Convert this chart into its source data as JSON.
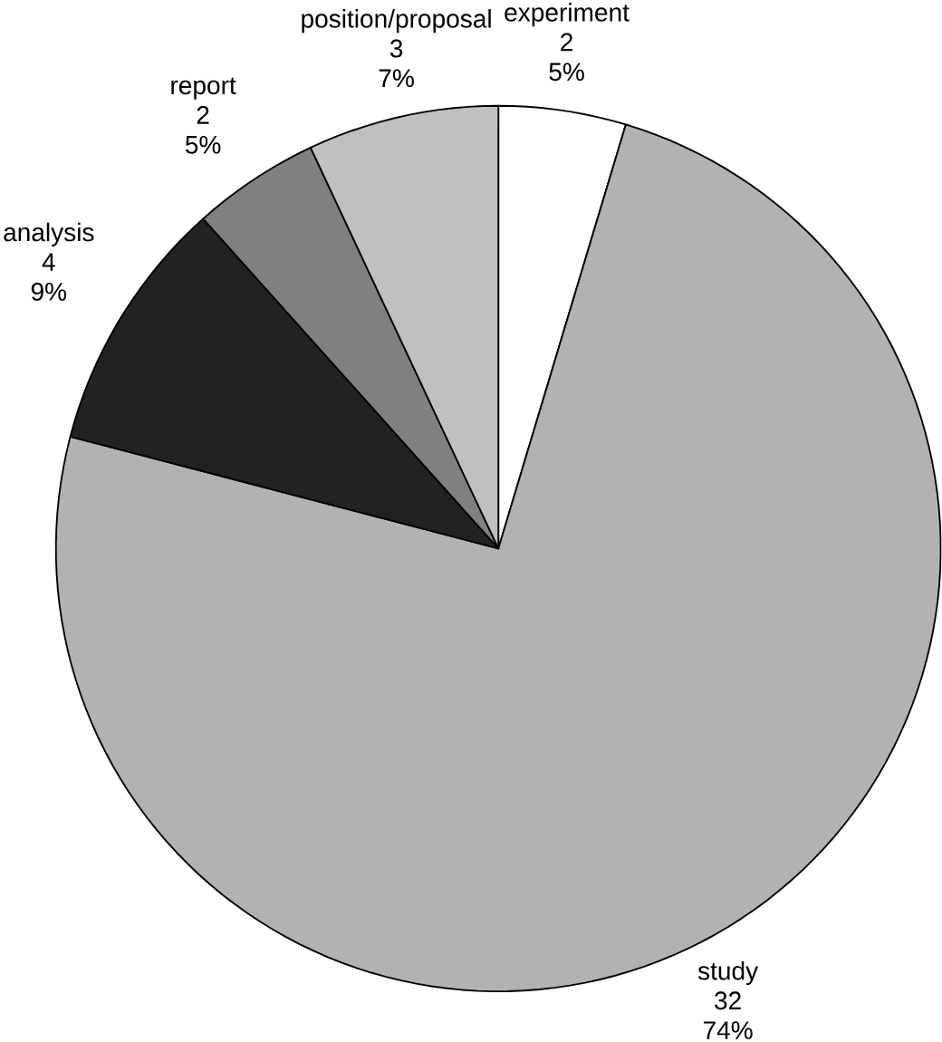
{
  "chart_data": {
    "type": "pie",
    "categories": [
      "experiment",
      "study",
      "analysis",
      "report",
      "position/proposal"
    ],
    "values": [
      2,
      32,
      4,
      2,
      3
    ],
    "colors": [
      "#ffffff",
      "#b2b2b2",
      "#222222",
      "#808080",
      "#c0c0c0"
    ],
    "value_labels": [
      "2",
      "32",
      "4",
      "2",
      "3"
    ],
    "annotations": [
      "5%",
      "74%",
      "9%",
      "5%",
      "7%"
    ]
  }
}
